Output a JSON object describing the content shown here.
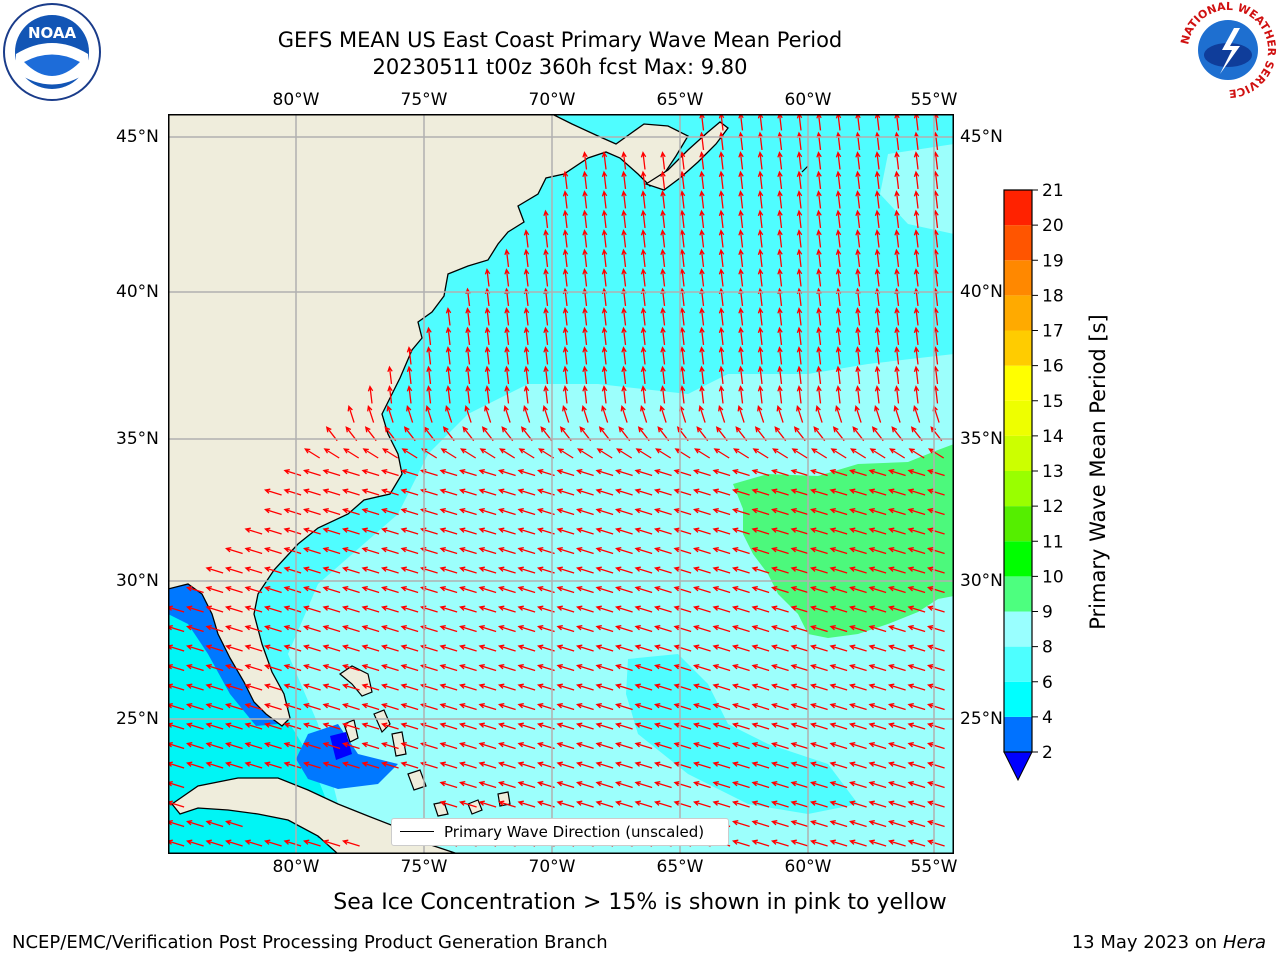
{
  "title": {
    "line1": "GEFS MEAN US East Coast Primary Wave Mean Period",
    "line2": "20230511 t00z 360h fcst   Max: 9.80"
  },
  "logos": {
    "left": "noaa-logo",
    "right": "nws-logo",
    "noaa_text": "NOAA",
    "nws_ring_text": "NATIONAL WEATHER SERVICE"
  },
  "map": {
    "lon_ticks": [
      "80°W",
      "75°W",
      "70°W",
      "65°W",
      "60°W",
      "55°W"
    ],
    "lat_ticks": [
      "45°N",
      "40°N",
      "35°N",
      "30°N",
      "25°N"
    ],
    "extent": {
      "lon_min": -85,
      "lon_max": -54.2,
      "lat_min": 20.5,
      "lat_max": 45.8
    },
    "ocean_color": "#4ffdff",
    "land_color": "#efeddc",
    "arrow_color": "#ff0000",
    "grid": true
  },
  "legend": {
    "label": "Primary Wave Direction (unscaled)"
  },
  "colorbar": {
    "label": "Primary Wave Mean Period [s]",
    "ticks": [
      "2",
      "4",
      "6",
      "8",
      "9",
      "10",
      "11",
      "12",
      "13",
      "14",
      "15",
      "16",
      "17",
      "18",
      "19",
      "20",
      "21"
    ],
    "colors": [
      "#0072ff",
      "#00ffff",
      "#4dffff",
      "#99ffff",
      "#4dff7f",
      "#00ff00",
      "#55ee00",
      "#99ff00",
      "#ccff00",
      "#eeff00",
      "#ffff00",
      "#ffcc00",
      "#ffaa00",
      "#ff8800",
      "#ff5500",
      "#ff2200"
    ],
    "extend_color": "#0000ff"
  },
  "note": "Sea Ice Concentration > 15% is shown in pink to yellow",
  "footer": {
    "left": "NCEP/EMC/Verification Post Processing Product Generation Branch",
    "date": "13 May 2023 on",
    "host": "Hera"
  }
}
